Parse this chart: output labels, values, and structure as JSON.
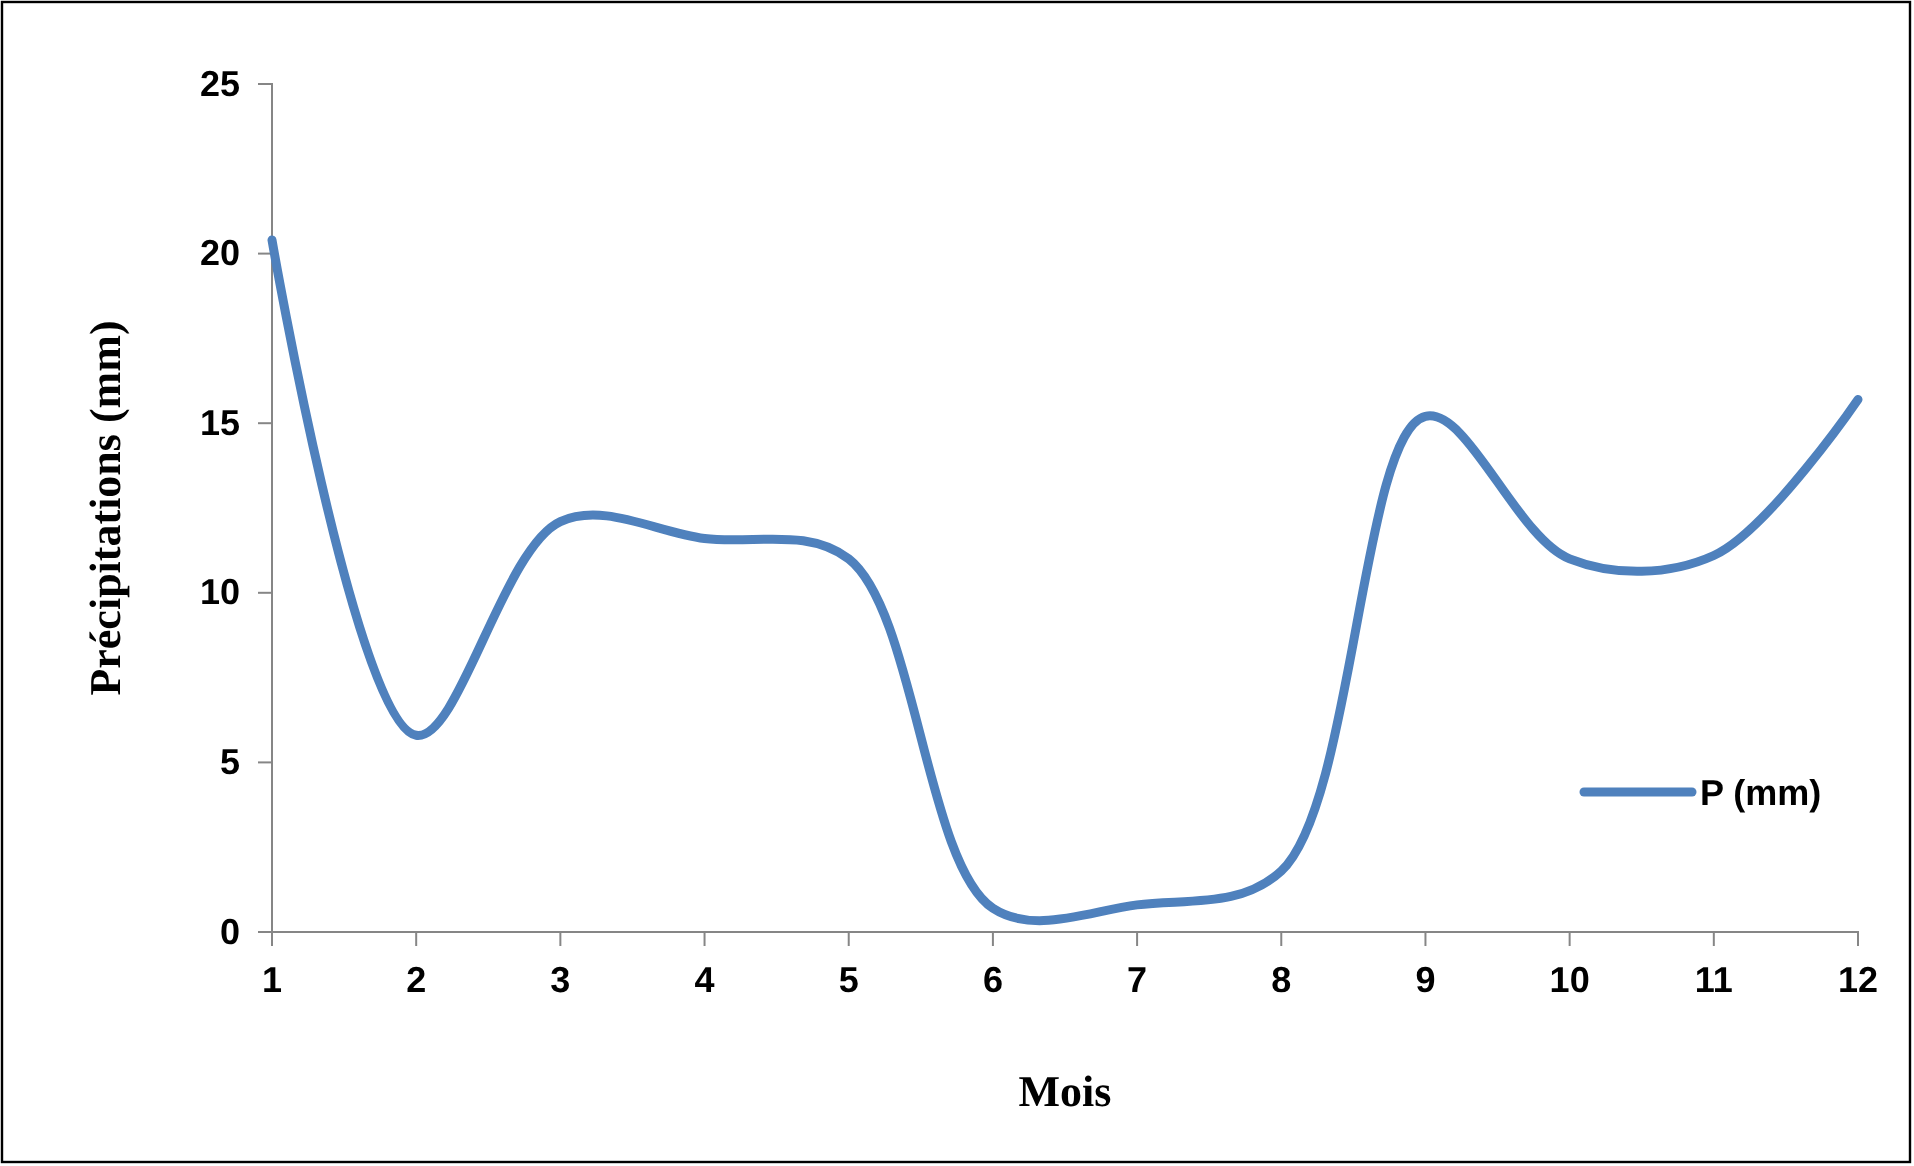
{
  "chart_data": {
    "type": "line",
    "xlabel": "Mois",
    "ylabel": "Précipitations (mm)",
    "x": [
      1,
      2,
      3,
      4,
      5,
      6,
      7,
      8,
      9,
      10,
      11,
      12
    ],
    "series": [
      {
        "name": "P (mm)",
        "color": "#4f81bd",
        "values": [
          20.4,
          5.8,
          12.1,
          11.6,
          11.0,
          0.7,
          0.8,
          1.8,
          15.2,
          11.0,
          11.1,
          15.7
        ]
      }
    ],
    "xlim": [
      1,
      12
    ],
    "xticks": [
      1,
      2,
      3,
      4,
      5,
      6,
      7,
      8,
      9,
      10,
      11,
      12
    ],
    "ylim": [
      0,
      25
    ],
    "yticks": [
      0,
      5,
      10,
      15,
      20,
      25
    ],
    "grid": false,
    "legend": "right",
    "marker": "none",
    "line_style": "solid"
  }
}
